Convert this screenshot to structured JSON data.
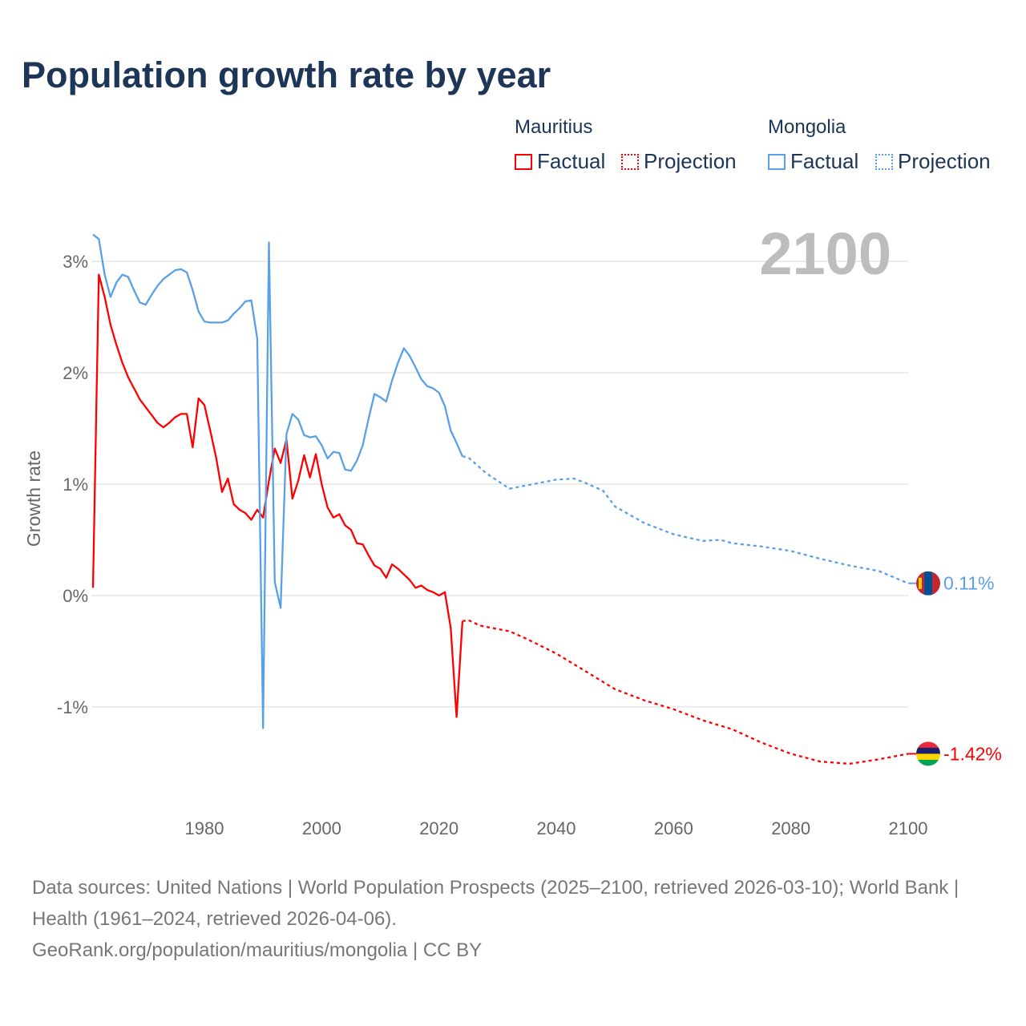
{
  "title": "Population growth rate by year",
  "legend": {
    "groups": [
      {
        "country": "Mauritius",
        "factual": "Factual",
        "projection": "Projection",
        "color": "#ff0000"
      },
      {
        "country": "Mongolia",
        "factual": "Factual",
        "projection": "Projection",
        "color": "#5aa0e6"
      }
    ]
  },
  "year_display": "2100",
  "footer": {
    "sources": "Data sources: United Nations | World Population Prospects (2025–2100, retrieved 2026-03-10); World Bank | Health (1961–2024, retrieved 2026-04-06).",
    "credit": "GeoRank.org/population/mauritius/mongolia | CC BY"
  },
  "chart_data": {
    "type": "line",
    "title": "Population growth rate by year",
    "xlabel": "",
    "ylabel": "Growth rate",
    "xlim": [
      1961,
      2100
    ],
    "ylim": [
      -1.8,
      3.4
    ],
    "x_ticks": [
      1980,
      2000,
      2020,
      2040,
      2060,
      2080,
      2100
    ],
    "x_tick_labels": [
      "1980",
      "2000",
      "2020",
      "2040",
      "2060",
      "2080",
      "2100"
    ],
    "y_ticks": [
      -1,
      0,
      1,
      2,
      3
    ],
    "y_tick_labels": [
      "-1%",
      "0%",
      "1%",
      "2%",
      "3%"
    ],
    "grid": true,
    "legend_position": "top-right",
    "series": [
      {
        "name": "Mauritius",
        "color": "#ff0000",
        "end_label": "-1.42%",
        "flag": "mauritius-flag",
        "factual": {
          "x": [
            1961,
            1962,
            1963,
            1964,
            1965,
            1966,
            1967,
            1968,
            1969,
            1970,
            1971,
            1972,
            1973,
            1974,
            1975,
            1976,
            1977,
            1978,
            1979,
            1980,
            1981,
            1982,
            1983,
            1984,
            1985,
            1986,
            1987,
            1988,
            1989,
            1990,
            1991,
            1992,
            1993,
            1994,
            1995,
            1996,
            1997,
            1998,
            1999,
            2000,
            2001,
            2002,
            2003,
            2004,
            2005,
            2006,
            2007,
            2008,
            2009,
            2010,
            2011,
            2012,
            2013,
            2014,
            2015,
            2016,
            2017,
            2018,
            2019,
            2020,
            2021,
            2022,
            2023,
            2024
          ],
          "y": [
            0.07,
            2.88,
            2.68,
            2.43,
            2.25,
            2.09,
            1.96,
            1.86,
            1.76,
            1.69,
            1.62,
            1.55,
            1.51,
            1.55,
            1.6,
            1.63,
            1.63,
            1.33,
            1.77,
            1.71,
            1.48,
            1.24,
            0.93,
            1.05,
            0.82,
            0.77,
            0.74,
            0.68,
            0.77,
            0.7,
            1.03,
            1.32,
            1.19,
            1.4,
            0.87,
            1.03,
            1.26,
            1.06,
            1.27,
            1.0,
            0.79,
            0.7,
            0.73,
            0.63,
            0.59,
            0.47,
            0.46,
            0.36,
            0.27,
            0.24,
            0.16,
            0.28,
            0.24,
            0.19,
            0.14,
            0.07,
            0.09,
            0.05,
            0.03,
            0.0,
            0.03,
            -0.29,
            -1.09,
            -0.23
          ]
        },
        "projection": {
          "x": [
            2024,
            2025,
            2027,
            2030,
            2032,
            2035,
            2040,
            2045,
            2050,
            2055,
            2060,
            2065,
            2070,
            2075,
            2080,
            2085,
            2090,
            2095,
            2100
          ],
          "y": [
            -0.23,
            -0.22,
            -0.27,
            -0.3,
            -0.32,
            -0.39,
            -0.52,
            -0.68,
            -0.84,
            -0.94,
            -1.02,
            -1.12,
            -1.2,
            -1.32,
            -1.42,
            -1.49,
            -1.51,
            -1.47,
            -1.42
          ]
        }
      },
      {
        "name": "Mongolia",
        "color": "#5aa0e6",
        "end_label": "0.11%",
        "flag": "mongolia-flag",
        "factual": {
          "x": [
            1961,
            1962,
            1963,
            1964,
            1965,
            1966,
            1967,
            1968,
            1969,
            1970,
            1971,
            1972,
            1973,
            1974,
            1975,
            1976,
            1977,
            1978,
            1979,
            1980,
            1981,
            1982,
            1983,
            1984,
            1985,
            1986,
            1987,
            1988,
            1989,
            1990,
            1991,
            1992,
            1993,
            1994,
            1995,
            1996,
            1997,
            1998,
            1999,
            2000,
            2001,
            2002,
            2003,
            2004,
            2005,
            2006,
            2007,
            2008,
            2009,
            2010,
            2011,
            2012,
            2013,
            2014,
            2015,
            2016,
            2017,
            2018,
            2019,
            2020,
            2021,
            2022,
            2023,
            2024
          ],
          "y": [
            3.24,
            3.2,
            2.88,
            2.68,
            2.81,
            2.88,
            2.86,
            2.74,
            2.63,
            2.61,
            2.7,
            2.78,
            2.84,
            2.88,
            2.92,
            2.93,
            2.9,
            2.74,
            2.55,
            2.46,
            2.45,
            2.45,
            2.45,
            2.47,
            2.53,
            2.58,
            2.64,
            2.65,
            2.31,
            -1.19,
            3.17,
            0.12,
            -0.11,
            1.45,
            1.63,
            1.58,
            1.44,
            1.42,
            1.43,
            1.35,
            1.23,
            1.29,
            1.28,
            1.13,
            1.12,
            1.21,
            1.35,
            1.59,
            1.81,
            1.78,
            1.74,
            1.93,
            2.09,
            2.22,
            2.15,
            2.05,
            1.94,
            1.88,
            1.86,
            1.82,
            1.7,
            1.48,
            1.37,
            1.25
          ]
        },
        "projection": {
          "x": [
            2024,
            2025,
            2028,
            2030,
            2032,
            2035,
            2040,
            2043,
            2045,
            2048,
            2050,
            2055,
            2060,
            2065,
            2068,
            2070,
            2075,
            2080,
            2085,
            2090,
            2095,
            2100
          ],
          "y": [
            1.25,
            1.24,
            1.1,
            1.03,
            0.96,
            0.99,
            1.04,
            1.05,
            1.01,
            0.94,
            0.8,
            0.65,
            0.55,
            0.49,
            0.5,
            0.47,
            0.44,
            0.4,
            0.33,
            0.27,
            0.22,
            0.11
          ]
        }
      }
    ]
  }
}
